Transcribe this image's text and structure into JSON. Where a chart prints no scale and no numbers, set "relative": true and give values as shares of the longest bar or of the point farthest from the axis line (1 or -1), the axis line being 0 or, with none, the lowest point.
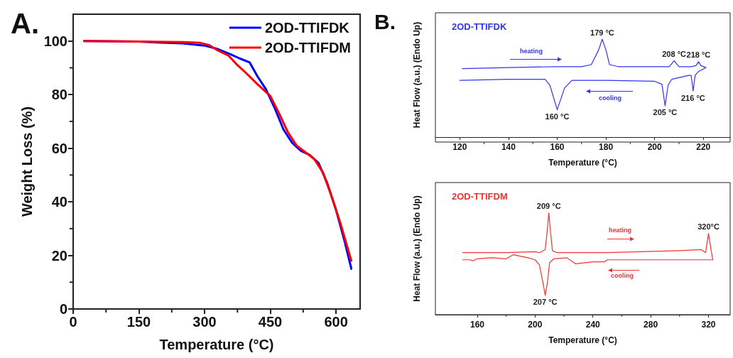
{
  "chart_data": [
    {
      "type": "line",
      "title": "A.",
      "xlabel": "Temperature (°C)",
      "ylabel": "Weight Loss (%)",
      "xlim": [
        0,
        655
      ],
      "xticks": [
        0,
        150,
        300,
        450,
        600
      ],
      "ylim": [
        0,
        110
      ],
      "yticks": [
        0,
        20,
        40,
        60,
        80,
        100
      ],
      "legend": "top right",
      "marker": "none",
      "line_style": "solid",
      "grid": false,
      "series": [
        {
          "name": "2OD-TTIFDK",
          "color": "#0000ff",
          "x": [
            25,
            150,
            200,
            250,
            300,
            330,
            360,
            380,
            403,
            420,
            440,
            460,
            480,
            500,
            520,
            540,
            560,
            580,
            600,
            620,
            635
          ],
          "values": [
            100,
            99.8,
            99.4,
            99.1,
            98.3,
            97,
            95,
            93.5,
            92,
            87,
            82,
            75,
            67,
            62,
            59,
            57.5,
            54.5,
            47,
            37,
            25,
            15
          ]
        },
        {
          "name": "2OD-TTIFDM",
          "color": "#ff0000",
          "x": [
            25,
            150,
            250,
            290,
            310,
            330,
            355,
            375,
            395,
            420,
            450,
            470,
            490,
            510,
            530,
            550,
            570,
            590,
            610,
            635
          ],
          "values": [
            100,
            99.8,
            99.6,
            99.3,
            98.5,
            96.5,
            94.5,
            91,
            88,
            84,
            79.5,
            73,
            66,
            61,
            58.5,
            56,
            51,
            42,
            32,
            18
          ]
        }
      ]
    },
    {
      "type": "line",
      "relative": true,
      "title": "2OD-TTIFDK",
      "xlabel": "Temperature (°C)",
      "ylabel": "Heat Flow (a.u.) (Endo Up)",
      "xlim": [
        110,
        231
      ],
      "xticks": [
        120,
        140,
        160,
        180,
        200,
        220
      ],
      "marker": "none",
      "line_style": "solid",
      "grid": false,
      "legend": false,
      "annotations": [
        "B.",
        {
          "text": "179 °C",
          "x": 178.5,
          "y": 1.0
        },
        {
          "text": "208 °C",
          "x": 208,
          "y": 0.78
        },
        {
          "text": "218 °C",
          "x": 218,
          "y": 0.77
        },
        {
          "text": "160 °C",
          "x": 160,
          "y": 0.28
        },
        {
          "text": "205 °C",
          "x": 204.3,
          "y": 0.32
        },
        {
          "text": "216 °C",
          "x": 215.8,
          "y": 0.47
        },
        "heating",
        "cooling"
      ],
      "series": [
        {
          "color": "#3333ee",
          "x": [
            121,
            140,
            160,
            170,
            174,
            177,
            178.5,
            180,
            181.5,
            185,
            200,
            206,
            208,
            210,
            215,
            217,
            218,
            219,
            221
          ],
          "values": [
            0.7,
            0.71,
            0.72,
            0.72,
            0.74,
            0.89,
            1.0,
            0.89,
            0.74,
            0.72,
            0.72,
            0.72,
            0.78,
            0.72,
            0.72,
            0.73,
            0.77,
            0.73,
            0.71
          ]
        },
        {
          "color": "#3333ee",
          "x": [
            120,
            140,
            155,
            157,
            160,
            163,
            166,
            180,
            200,
            203,
            204.3,
            205.5,
            207,
            214,
            215,
            215.8,
            216.6,
            218,
            221
          ],
          "values": [
            0.58,
            0.59,
            0.59,
            0.53,
            0.28,
            0.5,
            0.58,
            0.58,
            0.57,
            0.54,
            0.32,
            0.53,
            0.59,
            0.63,
            0.63,
            0.47,
            0.63,
            0.67,
            0.71
          ]
        }
      ]
    },
    {
      "type": "line",
      "relative": true,
      "title": "2OD-TTIFDM",
      "xlabel": "Temperature (°C)",
      "ylabel": "Heat Flow (a.u.) (Endo Up)",
      "xlim": [
        131,
        335
      ],
      "xticks": [
        160,
        200,
        240,
        280,
        320
      ],
      "marker": "none",
      "line_style": "solid",
      "grid": false,
      "legend": false,
      "annotations": [
        {
          "text": "209 °C",
          "x": 209.5,
          "y": 1.0
        },
        {
          "text": "320°C",
          "x": 320,
          "y": 0.8
        },
        {
          "text": "207 °C",
          "x": 207,
          "y": 0.19
        },
        "heating",
        "cooling"
      ],
      "series": [
        {
          "color": "#ee3333",
          "x": [
            150,
            180,
            200,
            203,
            207,
            208.5,
            209.5,
            210.5,
            212,
            215,
            250,
            300,
            315,
            318,
            320,
            322,
            323
          ],
          "values": [
            0.61,
            0.61,
            0.62,
            0.61,
            0.64,
            0.84,
            1.0,
            0.84,
            0.63,
            0.61,
            0.61,
            0.63,
            0.64,
            0.61,
            0.8,
            0.62,
            0.54
          ]
        },
        {
          "color": "#ee3333",
          "x": [
            150,
            155,
            157,
            160,
            170,
            180,
            185,
            195,
            200,
            203,
            205.5,
            207,
            208.5,
            210,
            213,
            222,
            228,
            240,
            248,
            250,
            300,
            323
          ],
          "values": [
            0.54,
            0.54,
            0.53,
            0.55,
            0.56,
            0.55,
            0.59,
            0.56,
            0.54,
            0.49,
            0.31,
            0.19,
            0.31,
            0.51,
            0.55,
            0.56,
            0.5,
            0.52,
            0.52,
            0.54,
            0.54,
            0.54
          ]
        }
      ]
    }
  ]
}
